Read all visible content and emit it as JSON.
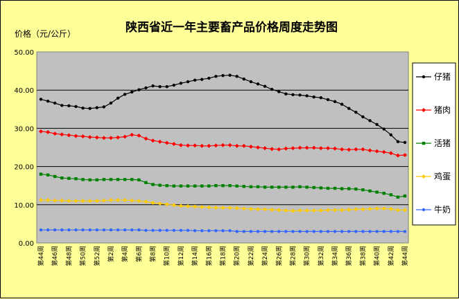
{
  "chart_data": {
    "type": "line",
    "title": "陕西省近一年主要畜产品价格周度走势图",
    "ylabel": "价格（元/公斤）",
    "xlabel": "",
    "ylim": [
      0,
      50
    ],
    "yticks": [
      "0.00",
      "10.00",
      "20.00",
      "30.00",
      "40.00",
      "50.00"
    ],
    "grid": true,
    "legend_position": "right",
    "x_tick_labels": [
      "第44周",
      "第46周",
      "第48周",
      "第50周",
      "第52周",
      "第2周",
      "第4周",
      "第6周",
      "第8周",
      "第10周",
      "第12周",
      "第14周",
      "第16周",
      "第18周",
      "第20周",
      "第22周",
      "第24周",
      "第26周",
      "第28周",
      "第30周",
      "第32周",
      "第34周",
      "第36周",
      "第38周",
      "第40周",
      "第42周",
      "第44周"
    ],
    "x": [
      "第44周",
      "第45周",
      "第46周",
      "第47周",
      "第48周",
      "第49周",
      "第50周",
      "第51周",
      "第52周",
      "第1周",
      "第2周",
      "第3周",
      "第4周",
      "第5周",
      "第6周",
      "第7周",
      "第8周",
      "第9周",
      "第10周",
      "第11周",
      "第12周",
      "第13周",
      "第14周",
      "第15周",
      "第16周",
      "第17周",
      "第18周",
      "第19周",
      "第20周",
      "第21周",
      "第22周",
      "第23周",
      "第24周",
      "第25周",
      "第26周",
      "第27周",
      "第28周",
      "第29周",
      "第30周",
      "第31周",
      "第32周",
      "第33周",
      "第34周",
      "第35周",
      "第36周",
      "第37周",
      "第38周",
      "第39周",
      "第40周",
      "第41周",
      "第42周",
      "第43周",
      "第44周"
    ],
    "series": [
      {
        "name": "仔猪",
        "color": "#000000",
        "marker": "circle",
        "values": [
          37.6,
          37.1,
          36.6,
          36.0,
          35.9,
          35.7,
          35.3,
          35.2,
          35.4,
          35.6,
          36.6,
          37.9,
          38.9,
          39.5,
          40.1,
          40.6,
          41.1,
          40.9,
          40.9,
          41.3,
          41.8,
          42.2,
          42.6,
          42.8,
          43.1,
          43.6,
          43.8,
          43.9,
          43.6,
          42.9,
          42.2,
          41.6,
          41.0,
          40.2,
          39.6,
          39.0,
          38.8,
          38.7,
          38.5,
          38.2,
          38.0,
          37.5,
          37.0,
          36.3,
          35.2,
          34.2,
          33.0,
          32.0,
          31.0,
          29.8,
          28.3,
          26.5,
          26.3
        ]
      },
      {
        "name": "猪肉",
        "color": "#FF0000",
        "marker": "diamond",
        "values": [
          29.2,
          29.0,
          28.6,
          28.4,
          28.2,
          28.0,
          27.9,
          27.7,
          27.6,
          27.5,
          27.5,
          27.6,
          27.8,
          28.3,
          28.1,
          27.3,
          26.8,
          26.5,
          26.2,
          25.9,
          25.6,
          25.5,
          25.5,
          25.4,
          25.4,
          25.5,
          25.6,
          25.6,
          25.4,
          25.4,
          25.2,
          25.0,
          24.8,
          24.6,
          24.5,
          24.7,
          24.8,
          24.9,
          24.9,
          24.9,
          24.8,
          24.8,
          24.7,
          24.5,
          24.4,
          24.5,
          24.5,
          24.2,
          24.0,
          23.8,
          23.5,
          22.9,
          23.0
        ]
      },
      {
        "name": "活猪",
        "color": "#008000",
        "marker": "square",
        "values": [
          18.0,
          17.8,
          17.4,
          17.0,
          16.9,
          16.8,
          16.6,
          16.5,
          16.5,
          16.6,
          16.6,
          16.6,
          16.6,
          16.6,
          16.5,
          15.8,
          15.3,
          15.1,
          15.0,
          14.9,
          14.9,
          14.9,
          14.9,
          14.9,
          14.9,
          15.0,
          15.0,
          15.0,
          14.9,
          14.8,
          14.7,
          14.7,
          14.6,
          14.6,
          14.6,
          14.6,
          14.6,
          14.7,
          14.6,
          14.5,
          14.4,
          14.3,
          14.3,
          14.2,
          14.2,
          14.1,
          13.9,
          13.6,
          13.3,
          13.0,
          12.6,
          12.0,
          12.3
        ]
      },
      {
        "name": "鸡蛋",
        "color": "#FFCC00",
        "marker": "diamond",
        "values": [
          11.2,
          11.2,
          11.1,
          11.1,
          11.0,
          11.0,
          11.0,
          11.0,
          11.0,
          11.1,
          11.2,
          11.2,
          11.2,
          11.1,
          11.0,
          10.8,
          10.5,
          10.3,
          10.1,
          9.9,
          9.7,
          9.6,
          9.5,
          9.4,
          9.3,
          9.2,
          9.2,
          9.2,
          9.1,
          9.0,
          8.9,
          8.8,
          8.8,
          8.7,
          8.6,
          8.5,
          8.4,
          8.5,
          8.5,
          8.5,
          8.5,
          8.6,
          8.6,
          8.6,
          8.7,
          8.8,
          8.8,
          8.9,
          9.0,
          9.0,
          8.9,
          8.6,
          8.6
        ]
      },
      {
        "name": "牛奶",
        "color": "#3366FF",
        "marker": "circle",
        "values": [
          3.4,
          3.4,
          3.4,
          3.4,
          3.4,
          3.4,
          3.4,
          3.4,
          3.4,
          3.4,
          3.4,
          3.4,
          3.4,
          3.4,
          3.4,
          3.3,
          3.3,
          3.3,
          3.3,
          3.3,
          3.3,
          3.3,
          3.2,
          3.2,
          3.2,
          3.2,
          3.2,
          3.2,
          3.0,
          3.0,
          3.0,
          3.0,
          3.0,
          3.0,
          3.0,
          3.0,
          3.0,
          3.0,
          3.0,
          3.0,
          3.0,
          3.0,
          3.0,
          3.0,
          3.0,
          3.0,
          3.0,
          3.0,
          3.0,
          3.0,
          3.0,
          3.0,
          3.0
        ]
      }
    ]
  }
}
